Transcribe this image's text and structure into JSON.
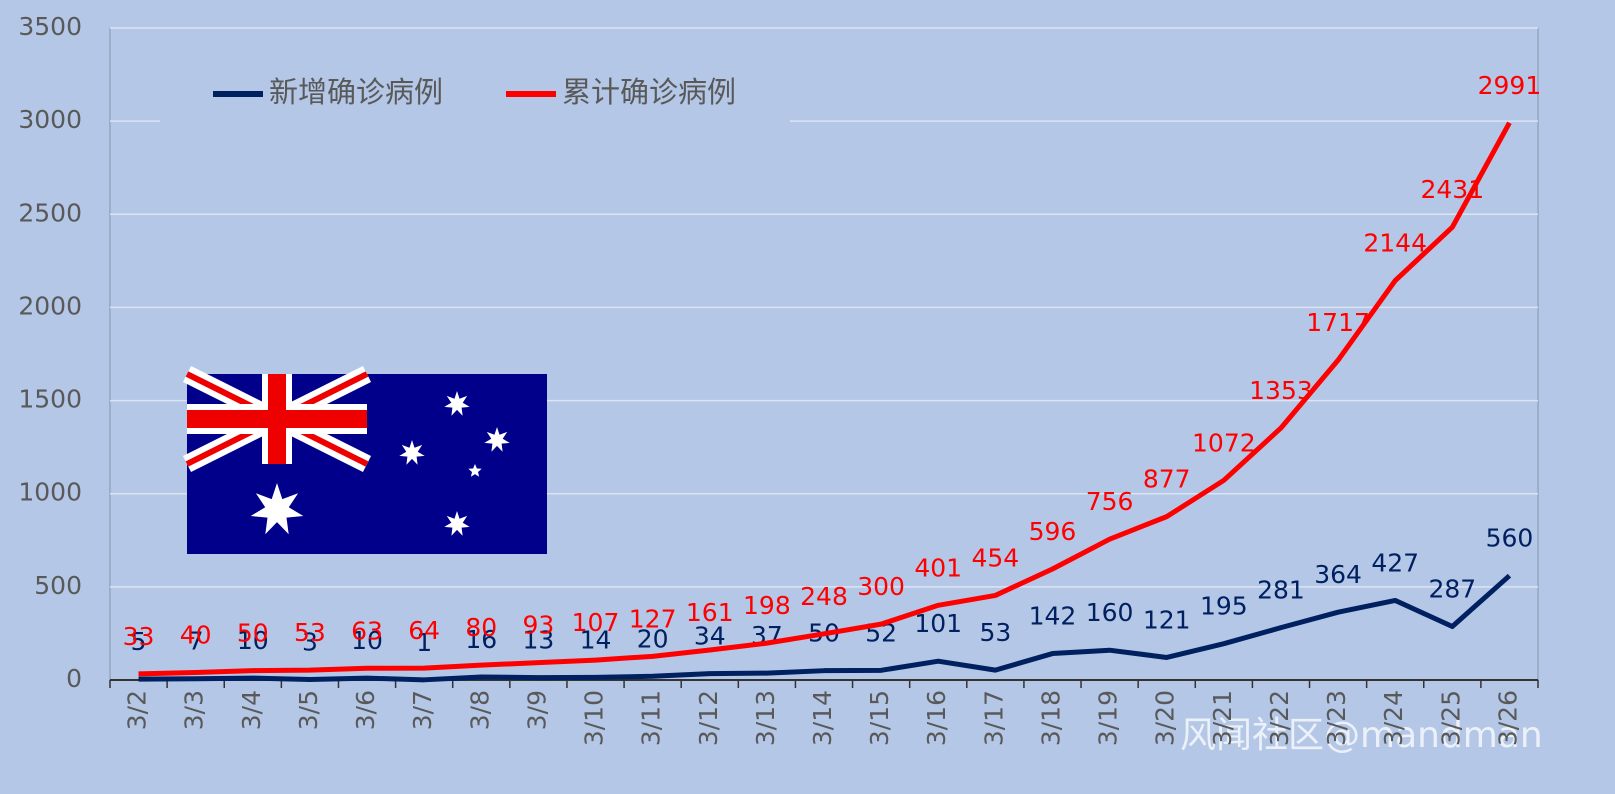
{
  "chart_data": {
    "type": "line",
    "categories": [
      "3/2",
      "3/3",
      "3/4",
      "3/5",
      "3/6",
      "3/7",
      "3/8",
      "3/9",
      "3/10",
      "3/11",
      "3/12",
      "3/13",
      "3/14",
      "3/15",
      "3/16",
      "3/17",
      "3/18",
      "3/19",
      "3/20",
      "3/21",
      "3/22",
      "3/23",
      "3/24",
      "3/25",
      "3/26"
    ],
    "series": [
      {
        "name": "新增确诊病例",
        "color": "#002060",
        "values": [
          5,
          7,
          10,
          3,
          10,
          1,
          16,
          13,
          14,
          20,
          34,
          37,
          50,
          52,
          101,
          53,
          142,
          160,
          121,
          195,
          281,
          364,
          427,
          287,
          560
        ]
      },
      {
        "name": "累计确诊病例",
        "color": "#ff0000",
        "values": [
          33,
          40,
          50,
          53,
          63,
          64,
          80,
          93,
          107,
          127,
          161,
          198,
          248,
          300,
          401,
          454,
          596,
          756,
          877,
          1072,
          1353,
          1717,
          2144,
          2431,
          2991
        ]
      }
    ],
    "ylim": [
      0,
      3500
    ],
    "yticks": [
      0,
      500,
      1000,
      1500,
      2000,
      2500,
      3000,
      3500
    ],
    "grid": true,
    "watermark": "风闻社区@mandman"
  }
}
